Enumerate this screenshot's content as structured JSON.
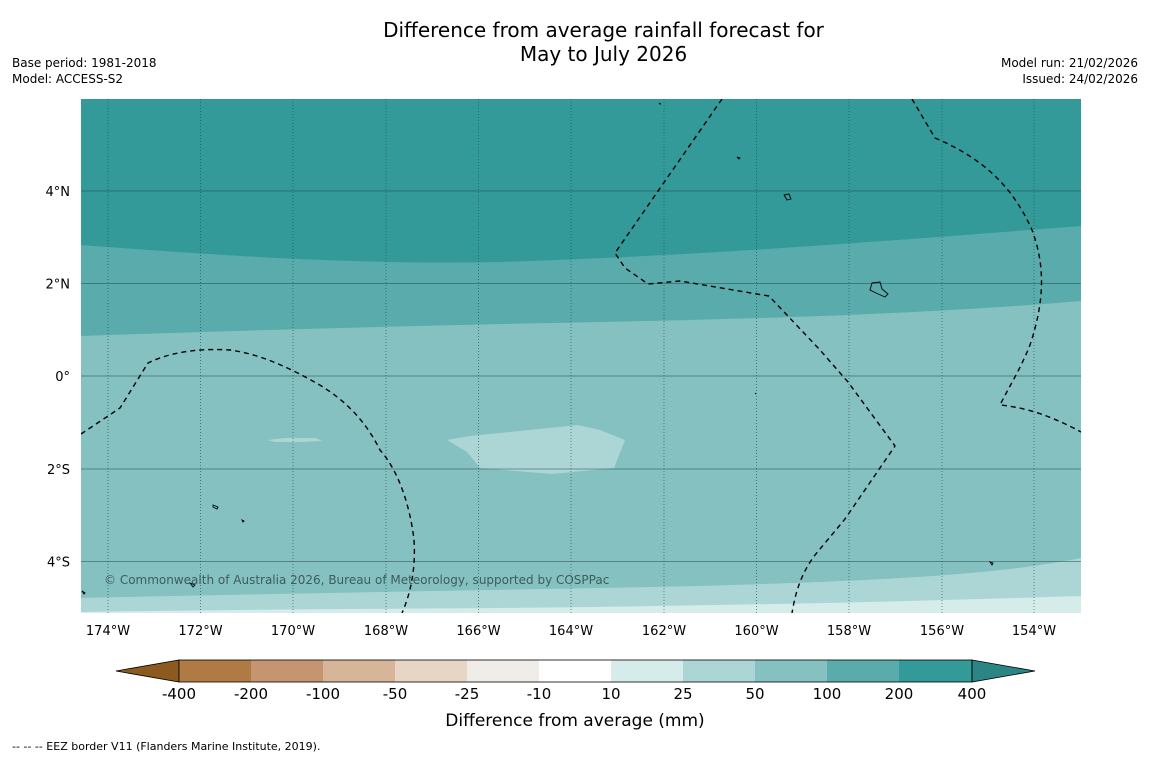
{
  "title": {
    "line1": "Difference from average rainfall forecast for",
    "line2": "May to July 2026"
  },
  "meta": {
    "base_period": "Base period: 1981-2018",
    "model": "Model: ACCESS-S2",
    "model_run": "Model run: 21/02/2026",
    "issued": "Issued: 24/02/2026"
  },
  "axes": {
    "lon_labels": [
      "174°W",
      "172°W",
      "170°W",
      "168°W",
      "166°W",
      "164°W",
      "162°W",
      "160°W",
      "158°W",
      "156°W",
      "154°W"
    ],
    "lat_labels": [
      "4°N",
      "2°N",
      "0°",
      "2°S",
      "4°S"
    ]
  },
  "copyright": "© Commonwealth of Australia 2026, Bureau of Meteorology, supported by COSPPac",
  "colorbar": {
    "label": "Difference from average (mm)",
    "ticks": [
      "-400",
      "-200",
      "-100",
      "-50",
      "-25",
      "-10",
      "10",
      "25",
      "50",
      "100",
      "200",
      "400"
    ],
    "colors": [
      "#8c5a1f",
      "#b07a45",
      "#c49570",
      "#d6b598",
      "#e7d5c5",
      "#f0ede8",
      "#ffffff",
      "#d6eceb",
      "#acd6d5",
      "#84c1c0",
      "#5aabab",
      "#339a99",
      "#2b8584"
    ]
  },
  "legend_note": "--  --  -- EEZ border V11 (Flanders Marine Institute, 2019).",
  "map_colors": {
    "band_200_400": "#339a99",
    "band_100_200": "#5aabab",
    "band_50_100": "#84c1c0",
    "band_25_50": "#acd6d5",
    "band_10_25": "#d6eceb"
  }
}
